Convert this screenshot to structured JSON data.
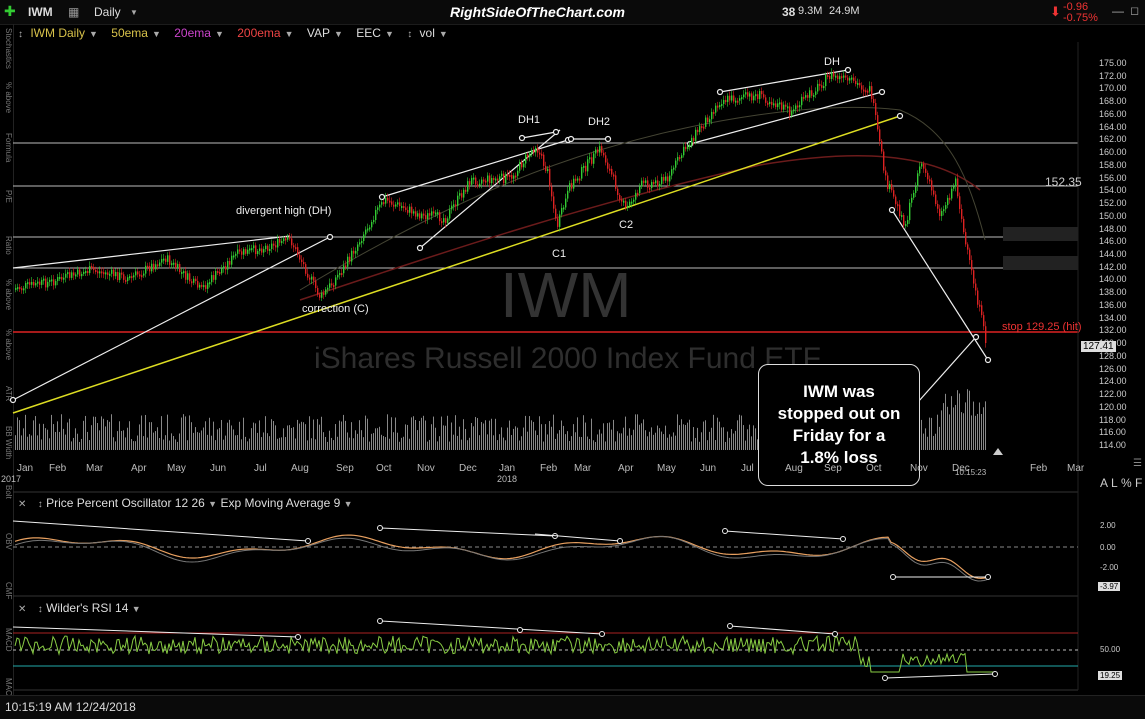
{
  "toolbar": {
    "symbol": "IWM",
    "period": "Daily",
    "site": "RightSideOfTheChart.com",
    "vol_count": "38",
    "vol1": "9.3M",
    "vol2": "24.9M",
    "change": "-0.96",
    "change_pct": "-0.75%"
  },
  "indicators": {
    "name": "IWM Daily",
    "ema50": "50ema",
    "ema20": "20ema",
    "ema200": "200ema",
    "vap": "VAP",
    "eec": "EEC",
    "vol": "vol",
    "colors": {
      "ema50": "#d8c24a",
      "ema20": "#cc44cc",
      "ema200": "#ee4444"
    }
  },
  "left_rail": [
    "Stochastics",
    "% above",
    "Formula",
    "P/E",
    "Ratio",
    "% above",
    "% above",
    "ATR",
    "BB Width",
    "Bolt",
    "OBV",
    "CMF",
    "MACD",
    "MACD"
  ],
  "price_axis": [
    "175.00",
    "172.00",
    "170.00",
    "168.00",
    "166.00",
    "164.00",
    "162.00",
    "160.00",
    "158.00",
    "156.00",
    "154.00",
    "152.00",
    "150.00",
    "148.00",
    "146.00",
    "144.00",
    "142.00",
    "140.00",
    "138.00",
    "136.00",
    "134.00",
    "132.00",
    "130.00",
    "128.00",
    "126.00",
    "124.00",
    "122.00",
    "120.00",
    "118.00",
    "116.00",
    "114.00"
  ],
  "price_tags": {
    "current": "127.41",
    "level": "152.35",
    "stop": "stop 129.25 (hit)"
  },
  "watermark": {
    "ticker": "IWM",
    "name": "iShares Russell 2000 Index Fund ETF"
  },
  "annotations": {
    "dh_top": "DH",
    "dh1": "DH1",
    "dh2": "DH2",
    "c1": "C1",
    "c2": "C2",
    "divergent": "divergent high (DH)",
    "correction": "correction (C)"
  },
  "callout": "IWM was stopped out on Friday for a 1.8% loss",
  "x_axis": [
    "Jan",
    "Feb",
    "Mar",
    "Apr",
    "May",
    "Jun",
    "Jul",
    "Aug",
    "Sep",
    "Oct",
    "Nov",
    "Dec",
    "Jan",
    "Feb",
    "Mar",
    "Apr",
    "May",
    "Jun",
    "Jul",
    "Aug",
    "Sep",
    "Oct",
    "Nov",
    "Dec",
    "Feb",
    "Mar"
  ],
  "x_years": {
    "y1": "2017",
    "y2": "2018"
  },
  "chart_time": "10:15:23",
  "ppo": {
    "title": "Price Percent Oscillator 12 26",
    "sub": "Exp Moving Average 9",
    "axis": [
      "2.00",
      "0.00",
      "-2.00"
    ],
    "current": "-3.97"
  },
  "rsi": {
    "title": "Wilder's RSI 14",
    "axis": [
      "50.00"
    ],
    "current": "19.25"
  },
  "scale_controls": {
    "a": "A",
    "l": "L",
    "pct": "%",
    "f": "F"
  },
  "status": "10:15:19 AM 12/24/2018"
}
